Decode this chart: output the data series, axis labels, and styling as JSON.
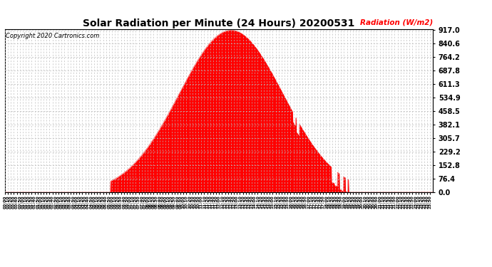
{
  "title": "Solar Radiation per Minute (24 Hours) 20200531",
  "copyright_text": "Copyright 2020 Cartronics.com",
  "ylabel": "Radiation (W/m2)",
  "ylabel_color": "red",
  "fill_color": "red",
  "line_color": "red",
  "background_color": "white",
  "grid_color": "#bbbbbb",
  "ytick_labels": [
    0.0,
    76.4,
    152.8,
    229.2,
    305.7,
    382.1,
    458.5,
    534.9,
    611.3,
    687.8,
    764.2,
    840.6,
    917.0
  ],
  "ymax": 917.0,
  "ymin": 0.0,
  "num_minutes": 1440,
  "peak_minute": 760,
  "peak_value": 917.0,
  "sunrise_minute": 355,
  "sunset_minute": 1155,
  "sigma": 175
}
